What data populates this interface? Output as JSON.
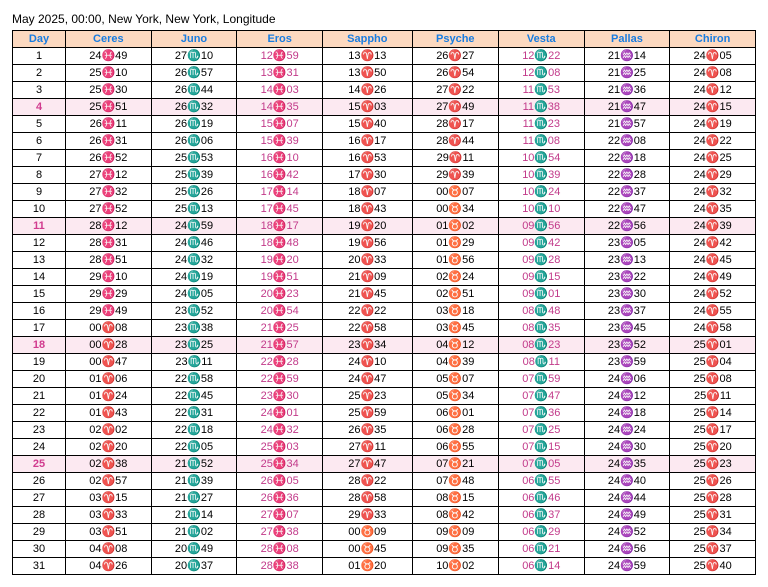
{
  "title": "May 2025, 00:00, New York, New York, Longitude",
  "columns": [
    "Day",
    "Ceres",
    "Juno",
    "Eros",
    "Sappho",
    "Psyche",
    "Vesta",
    "Pallas",
    "Chiron"
  ],
  "pink_columns": [
    2,
    5
  ],
  "highlight_days": [
    4,
    11,
    18,
    25
  ],
  "rows": [
    {
      "day": 1,
      "cells": [
        "24♓49",
        "27♏10",
        "12♓59",
        "13♈13",
        "26♈27",
        "12♏22",
        "21♒14",
        "24♈05"
      ]
    },
    {
      "day": 2,
      "cells": [
        "25♓10",
        "26♏57",
        "13♓31",
        "13♈50",
        "26♈54",
        "12♏08",
        "21♒25",
        "24♈08"
      ]
    },
    {
      "day": 3,
      "cells": [
        "25♓30",
        "26♏44",
        "14♓03",
        "14♈26",
        "27♈22",
        "11♏53",
        "21♒36",
        "24♈12"
      ]
    },
    {
      "day": 4,
      "cells": [
        "25♓51",
        "26♏32",
        "14♓35",
        "15♈03",
        "27♈49",
        "11♏38",
        "21♒47",
        "24♈15"
      ]
    },
    {
      "day": 5,
      "cells": [
        "26♓11",
        "26♏19",
        "15♓07",
        "15♈40",
        "28♈17",
        "11♏23",
        "21♒57",
        "24♈19"
      ]
    },
    {
      "day": 6,
      "cells": [
        "26♓31",
        "26♏06",
        "15♓39",
        "16♈17",
        "28♈44",
        "11♏08",
        "22♒08",
        "24♈22"
      ]
    },
    {
      "day": 7,
      "cells": [
        "26♓52",
        "25♏53",
        "16♓10",
        "16♈53",
        "29♈11",
        "10♏54",
        "22♒18",
        "24♈25"
      ]
    },
    {
      "day": 8,
      "cells": [
        "27♓12",
        "25♏39",
        "16♓42",
        "17♈30",
        "29♈39",
        "10♏39",
        "22♒28",
        "24♈29"
      ]
    },
    {
      "day": 9,
      "cells": [
        "27♓32",
        "25♏26",
        "17♓14",
        "18♈07",
        "00♉07",
        "10♏24",
        "22♒37",
        "24♈32"
      ]
    },
    {
      "day": 10,
      "cells": [
        "27♓52",
        "25♏13",
        "17♓45",
        "18♈43",
        "00♉34",
        "10♏10",
        "22♒47",
        "24♈35"
      ]
    },
    {
      "day": 11,
      "cells": [
        "28♓12",
        "24♏59",
        "18♓17",
        "19♈20",
        "01♉02",
        "09♏56",
        "22♒56",
        "24♈39"
      ]
    },
    {
      "day": 12,
      "cells": [
        "28♓31",
        "24♏46",
        "18♓48",
        "19♈56",
        "01♉29",
        "09♏42",
        "23♒05",
        "24♈42"
      ]
    },
    {
      "day": 13,
      "cells": [
        "28♓51",
        "24♏32",
        "19♓20",
        "20♈33",
        "01♉56",
        "09♏28",
        "23♒13",
        "24♈45"
      ]
    },
    {
      "day": 14,
      "cells": [
        "29♓10",
        "24♏19",
        "19♓51",
        "21♈09",
        "02♉24",
        "09♏15",
        "23♒22",
        "24♈49"
      ]
    },
    {
      "day": 15,
      "cells": [
        "29♓29",
        "24♏05",
        "20♓23",
        "21♈45",
        "02♉51",
        "09♏01",
        "23♒30",
        "24♈52"
      ]
    },
    {
      "day": 16,
      "cells": [
        "29♓49",
        "23♏52",
        "20♓54",
        "22♈22",
        "03♉18",
        "08♏48",
        "23♒37",
        "24♈55"
      ]
    },
    {
      "day": 17,
      "cells": [
        "00♈08",
        "23♏38",
        "21♓25",
        "22♈58",
        "03♉45",
        "08♏35",
        "23♒45",
        "24♈58"
      ]
    },
    {
      "day": 18,
      "cells": [
        "00♈28",
        "23♏25",
        "21♓57",
        "23♈34",
        "04♉12",
        "08♏23",
        "23♒52",
        "25♈01"
      ]
    },
    {
      "day": 19,
      "cells": [
        "00♈47",
        "23♏11",
        "22♓28",
        "24♈10",
        "04♉39",
        "08♏11",
        "23♒59",
        "25♈04"
      ]
    },
    {
      "day": 20,
      "cells": [
        "01♈06",
        "22♏58",
        "22♓59",
        "24♈47",
        "05♉07",
        "07♏59",
        "24♒06",
        "25♈08"
      ]
    },
    {
      "day": 21,
      "cells": [
        "01♈24",
        "22♏45",
        "23♓30",
        "25♈23",
        "05♉34",
        "07♏47",
        "24♒12",
        "25♈11"
      ]
    },
    {
      "day": 22,
      "cells": [
        "01♈43",
        "22♏31",
        "24♓01",
        "25♈59",
        "06♉01",
        "07♏36",
        "24♒18",
        "25♈14"
      ]
    },
    {
      "day": 23,
      "cells": [
        "02♈02",
        "22♏18",
        "24♓32",
        "26♈35",
        "06♉28",
        "07♏25",
        "24♒24",
        "25♈17"
      ]
    },
    {
      "day": 24,
      "cells": [
        "02♈20",
        "22♏05",
        "25♓03",
        "27♈11",
        "06♉55",
        "07♏15",
        "24♒30",
        "25♈20"
      ]
    },
    {
      "day": 25,
      "cells": [
        "02♈38",
        "21♏52",
        "25♓34",
        "27♈47",
        "07♉21",
        "07♏05",
        "24♒35",
        "25♈23"
      ]
    },
    {
      "day": 26,
      "cells": [
        "02♈57",
        "21♏39",
        "26♓05",
        "28♈22",
        "07♉48",
        "06♏55",
        "24♒40",
        "25♈26"
      ]
    },
    {
      "day": 27,
      "cells": [
        "03♈15",
        "21♏27",
        "26♓36",
        "28♈58",
        "08♉15",
        "06♏46",
        "24♒44",
        "25♈28"
      ]
    },
    {
      "day": 28,
      "cells": [
        "03♈33",
        "21♏14",
        "27♓07",
        "29♈33",
        "08♉42",
        "06♏37",
        "24♒49",
        "25♈31"
      ]
    },
    {
      "day": 29,
      "cells": [
        "03♈51",
        "21♏02",
        "27♓38",
        "00♉09",
        "09♉09",
        "06♏29",
        "24♒52",
        "25♈34"
      ]
    },
    {
      "day": 30,
      "cells": [
        "04♈08",
        "20♏49",
        "28♓08",
        "00♉45",
        "09♉35",
        "06♏21",
        "24♒56",
        "25♈37"
      ]
    },
    {
      "day": 31,
      "cells": [
        "04♈26",
        "20♏37",
        "28♓38",
        "01♉20",
        "10♉02",
        "06♏14",
        "24♒59",
        "25♈40"
      ]
    }
  ]
}
